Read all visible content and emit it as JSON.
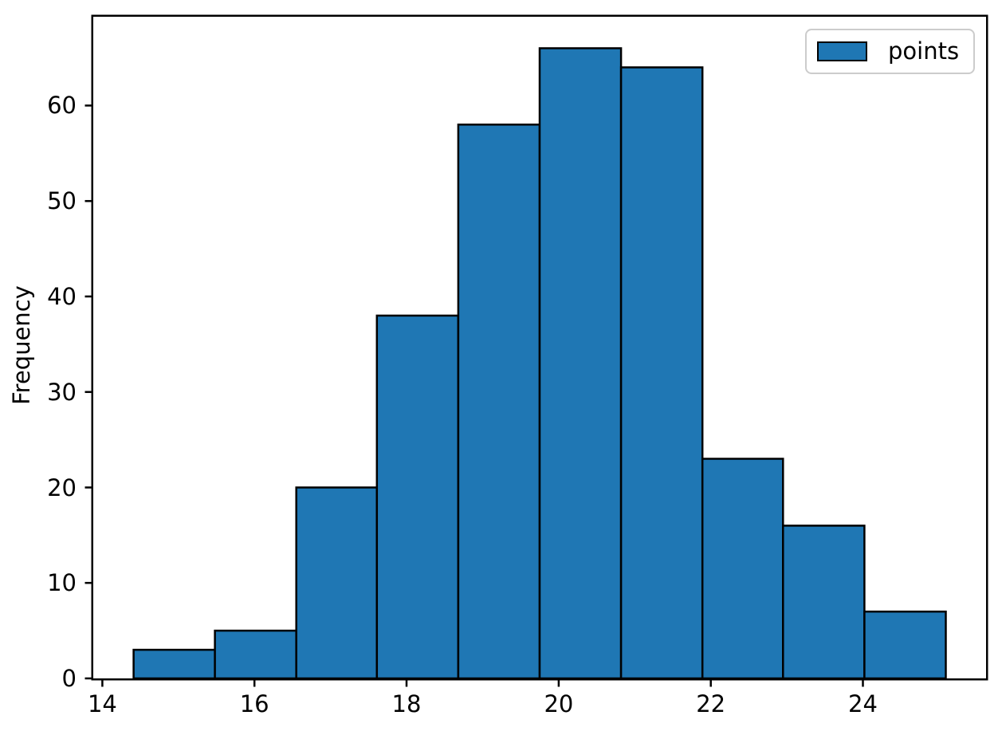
{
  "figure": {
    "background_color": "#ffffff"
  },
  "chart_data": {
    "type": "histogram",
    "title": "",
    "xlabel": "",
    "ylabel": "Frequency",
    "legend_label": "points",
    "legend_position": "upper right",
    "counts": [
      3,
      5,
      20,
      38,
      58,
      66,
      64,
      23,
      16,
      7
    ],
    "bin_edges": [
      14.41,
      15.48,
      16.55,
      17.61,
      18.68,
      19.75,
      20.82,
      21.89,
      22.95,
      24.02,
      25.09
    ],
    "xticks": [
      14,
      16,
      18,
      20,
      22,
      24
    ],
    "yticks": [
      0,
      10,
      20,
      30,
      40,
      50,
      60
    ],
    "xlim": [
      13.88,
      25.62
    ],
    "ylim": [
      0,
      69.3
    ],
    "grid": false,
    "bar_fill_color": "#1f77b4",
    "bar_edge_color": "#000000",
    "axis_color": "#000000",
    "legend_border_color": "#cccccc"
  }
}
